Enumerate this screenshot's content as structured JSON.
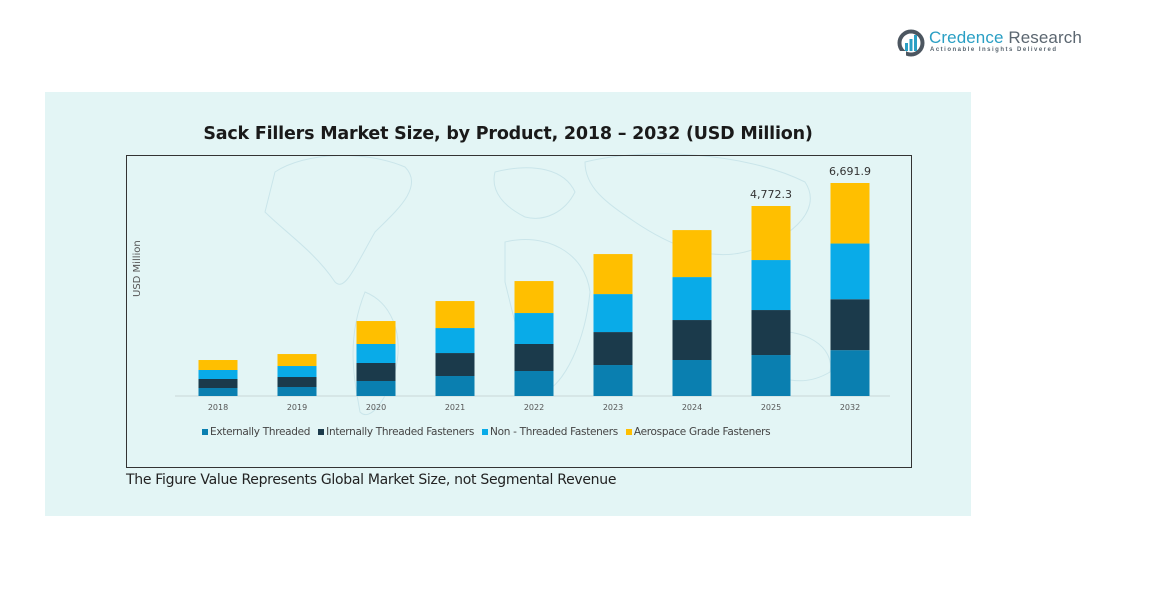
{
  "brand": {
    "name_part1": "Credence",
    "name_part2": " Research",
    "tagline": "Actionable Insights Delivered"
  },
  "footnote": "The Figure Value Represents Global Market Size, not Segmental Revenue",
  "chart_data": {
    "type": "bar",
    "stacked": true,
    "title": "Sack Fillers Market Size, by Product, 2018 – 2032 (USD Million)",
    "xlabel": "",
    "ylabel": "USD Million",
    "categories": [
      "2018",
      "2019",
      "2020",
      "2021",
      "2022",
      "2023",
      "2024",
      "2025",
      "2032"
    ],
    "series": [
      {
        "name": "Externally Threaded",
        "color": "#0a7fb0",
        "values": [
          201,
          226,
          377,
          502,
          628,
          778,
          904,
          1029,
          1440
        ]
      },
      {
        "name": "Internally Threaded Fasteners",
        "color": "#1b3a4b",
        "values": [
          226,
          251,
          452,
          577,
          678,
          828,
          1004,
          1130,
          1600
        ]
      },
      {
        "name": "Non - Threaded Fasteners",
        "color": "#09abe8",
        "values": [
          226,
          276,
          477,
          628,
          778,
          954,
          1079,
          1256,
          1750
        ]
      },
      {
        "name": "Aerospace Grade Fasteners",
        "color": "#ffbf00",
        "values": [
          251,
          301,
          577,
          678,
          803,
          1005,
          1180,
          1357.3,
          1901.9
        ]
      }
    ],
    "totals": [
      904,
      1054,
      1883,
      2385,
      2887,
      3565,
      4167,
      4772.3,
      6691.9
    ],
    "data_labels": {
      "2025": "4,772.3",
      "2032": "6,691.9"
    },
    "legend_position": "bottom",
    "grid": false
  }
}
